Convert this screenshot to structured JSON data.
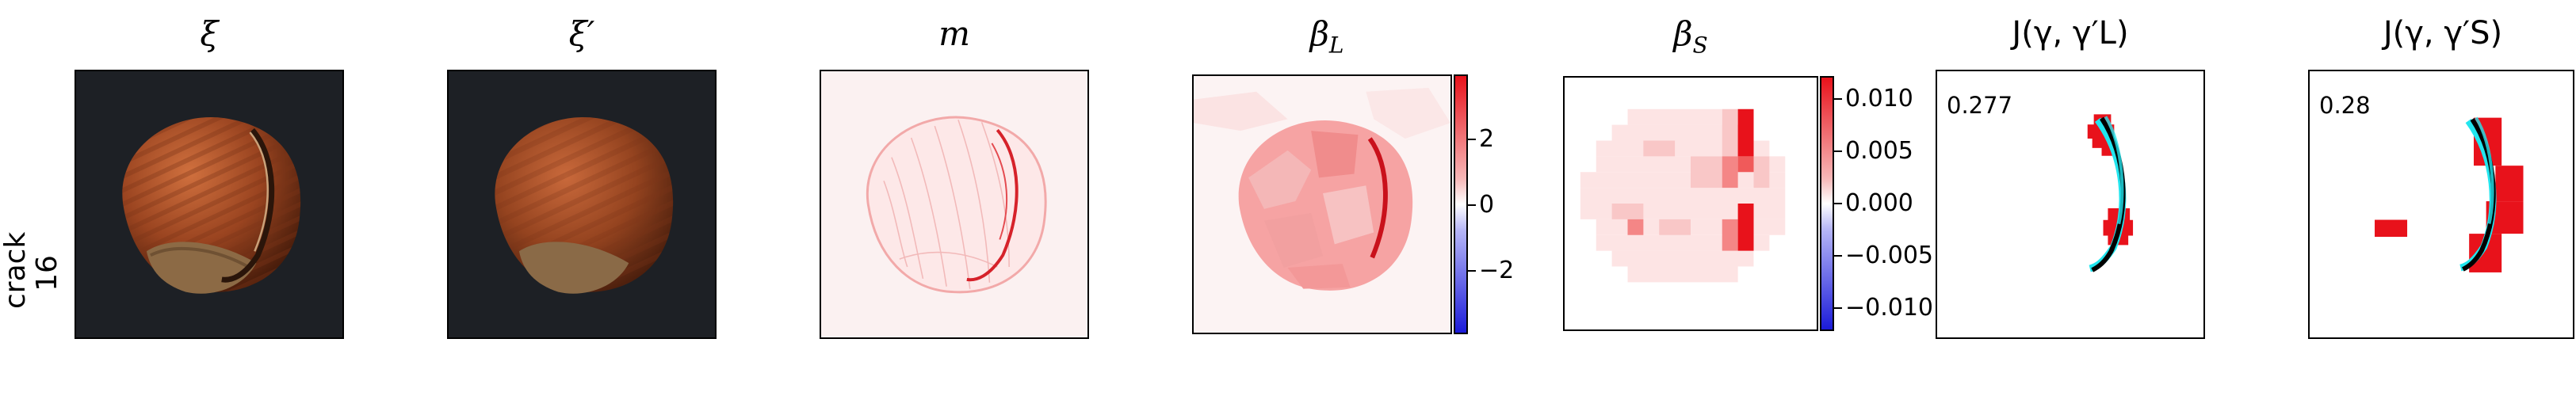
{
  "row_label": [
    "crack",
    "16"
  ],
  "panels": [
    {
      "title": "ξ"
    },
    {
      "title": "ξ′"
    },
    {
      "title": "m"
    },
    {
      "title": "β",
      "sub": "L"
    },
    {
      "title": "β",
      "sub": "S"
    },
    {
      "title": "J(γ, γ′L)"
    },
    {
      "title": "J(γ, γ′S)"
    }
  ],
  "colorbar_L": {
    "ticks": [
      "2",
      "0",
      "−2"
    ],
    "values": [
      2,
      0,
      -2
    ],
    "range": [
      -3.7,
      3.7
    ]
  },
  "colorbar_S": {
    "ticks": [
      "0.010",
      "0.005",
      "0.000",
      "−0.005",
      "−0.010"
    ],
    "values": [
      0.01,
      0.005,
      0,
      -0.005,
      -0.01
    ],
    "range": [
      -0.0122,
      0.0122
    ]
  },
  "scores": {
    "L": "0.277",
    "S": "0.28"
  },
  "colors": {
    "positive": "#e8121b",
    "negative": "#1b1bd9",
    "contour_true": "#000000",
    "contour_pred": "#22e5ee",
    "background_photo": "#1d2025"
  }
}
